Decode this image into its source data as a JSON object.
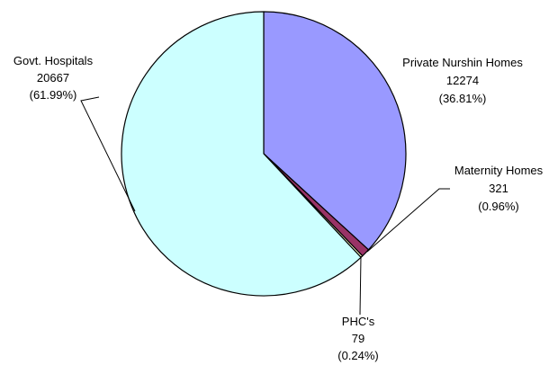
{
  "chart_data": {
    "type": "pie",
    "slices": [
      {
        "name": "Private Nurshin Homes",
        "value": 12274,
        "value_label": "12274",
        "percent": 36.81,
        "percent_label": "(36.81%)",
        "color": "#9999FF"
      },
      {
        "name": "Maternity Homes",
        "value": 321,
        "value_label": "321",
        "percent": 0.96,
        "percent_label": "(0.96%)",
        "color": "#993366"
      },
      {
        "name": "PHC's",
        "value": 79,
        "value_label": "79",
        "percent": 0.24,
        "percent_label": "(0.24%)",
        "color": "#FFFFCC"
      },
      {
        "name": "Govt. Hospitals",
        "value": 20667,
        "value_label": "20667",
        "percent": 61.99,
        "percent_label": "(61.99%)",
        "color": "#CCFFFF"
      }
    ],
    "start_angle": "12 o'clock",
    "direction": "clockwise",
    "outline_color": "#000000"
  }
}
